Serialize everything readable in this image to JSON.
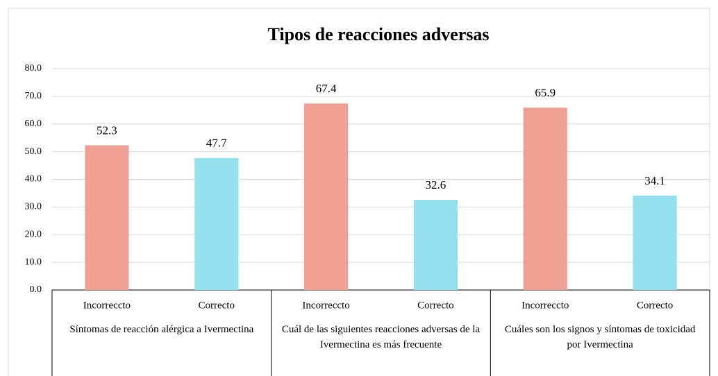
{
  "chart_data": {
    "type": "bar",
    "title": "Tipos de reacciones adversas",
    "categories": [
      "Incorreccto",
      "Correcto",
      "Incorreccto",
      "Correcto",
      "Incorreccto",
      "Correcto"
    ],
    "groups": [
      "Síntomas de reacción alérgica a Ivermectina",
      "Cuál de las siguientes reacciones adversas de la Ivermectina es más frecuente",
      "Cuáles son los signos y síntomas de toxicidad por Ivermectina"
    ],
    "values": [
      52.3,
      47.7,
      67.4,
      32.6,
      65.9,
      34.1
    ],
    "colors": [
      "#f0a093",
      "#93e0ee",
      "#f0a093",
      "#93e0ee",
      "#f0a093",
      "#93e0ee"
    ],
    "ylim": [
      0,
      80
    ],
    "yticks": [
      {
        "value": 0,
        "label": "0.0"
      },
      {
        "value": 10,
        "label": "10.0"
      },
      {
        "value": 20,
        "label": "20.0"
      },
      {
        "value": 30,
        "label": "30.0"
      },
      {
        "value": 40,
        "label": "40.0"
      },
      {
        "value": 50,
        "label": "50.0"
      },
      {
        "value": 60,
        "label": "60.0"
      },
      {
        "value": 70,
        "label": "70.0"
      },
      {
        "value": 80,
        "label": "80.0"
      }
    ],
    "grid": true
  }
}
